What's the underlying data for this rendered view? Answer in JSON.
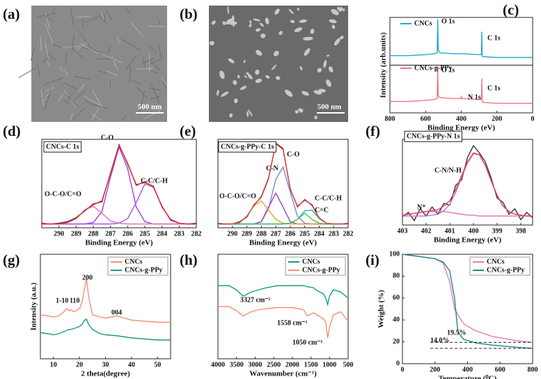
{
  "images": [
    {
      "label": "(a)",
      "scale_bar": "500 nm"
    },
    {
      "label": "(b)",
      "scale_bar": "500 nm"
    }
  ],
  "chart_data": [
    {
      "type": "line",
      "label": "(c)",
      "xlabel": "Binding Energy (eV)",
      "ylabel": "Intensity (arb.units)",
      "x": [
        800,
        700,
        600,
        550,
        535,
        532,
        529,
        520,
        450,
        402,
        400,
        398,
        300,
        290,
        287,
        285,
        283,
        280,
        200,
        100,
        0
      ],
      "series": [
        {
          "name": "CNCs",
          "color": "#22aacc",
          "values": [
            60,
            60,
            61,
            62,
            63,
            98,
            66,
            63,
            62,
            62,
            62,
            62,
            61,
            61,
            62,
            85,
            60,
            59,
            58,
            58,
            58
          ]
        },
        {
          "name": "CNCs-g-PPy",
          "color": "#f07880",
          "values": [
            12,
            12,
            13,
            14,
            15,
            48,
            18,
            16,
            15,
            15,
            18,
            15,
            14,
            14,
            15,
            36,
            12,
            11,
            10,
            10,
            10
          ]
        }
      ],
      "xlim": [
        800,
        0
      ],
      "ylim": [
        0,
        100
      ],
      "xticks": [
        800,
        600,
        400,
        200,
        0
      ],
      "annotations": [
        "O 1s",
        "C 1s",
        "O 1s",
        "N 1s",
        "C 1s"
      ]
    },
    {
      "type": "line",
      "label": "(d)",
      "title": "CNCs-C 1s",
      "xlabel": "Binding Energy (eV)",
      "x": [
        291,
        290.5,
        290,
        289.5,
        289,
        288.5,
        288,
        287.5,
        287,
        286.5,
        286,
        285.5,
        285,
        284.5,
        284,
        283.5,
        283,
        282.5,
        282
      ],
      "series": [
        {
          "color": "#222222",
          "values": [
            6,
            5,
            6,
            8,
            13,
            22,
            31,
            34,
            71,
            108,
            83,
            56,
            59,
            54,
            27,
            11,
            6,
            5,
            6
          ]
        },
        {
          "color": "#a040e0",
          "values": [
            5,
            5,
            5,
            5,
            5,
            5,
            7,
            21,
            66,
            105,
            77,
            27,
            8,
            5,
            5,
            5,
            5,
            5,
            5
          ]
        },
        {
          "color": "#b050e8",
          "values": [
            5,
            5,
            5,
            5,
            5,
            5,
            5,
            5,
            5,
            6,
            12,
            33,
            57,
            53,
            28,
            10,
            6,
            5,
            5
          ]
        },
        {
          "color": "#e070c0",
          "values": [
            5,
            5,
            5,
            7,
            12,
            23,
            28,
            19,
            9,
            6,
            5,
            5,
            5,
            5,
            5,
            5,
            5,
            5,
            5
          ]
        },
        {
          "color": "#e8303a",
          "values": [
            5,
            5,
            5,
            7,
            12,
            23,
            30,
            35,
            70,
            107,
            84,
            55,
            60,
            53,
            28,
            10,
            6,
            5,
            5
          ]
        }
      ],
      "xlim": [
        291,
        282
      ],
      "ylim": [
        0,
        115
      ],
      "xticks": [
        290,
        289,
        288,
        287,
        286,
        285,
        284,
        283,
        282
      ],
      "annotations": [
        "C-O",
        "O-C-O/C=O",
        "C-C/C-H"
      ]
    },
    {
      "type": "line",
      "label": "(e)",
      "title": "CNCs-g-PPy-C 1s",
      "xlabel": "Binding Energy (eV)",
      "x": [
        291,
        290.5,
        290,
        289.5,
        289,
        288.5,
        288,
        287.5,
        287,
        286.5,
        286,
        285.5,
        285,
        284.5,
        284,
        283.5,
        283,
        282.5,
        282
      ],
      "series": [
        {
          "color": "#333333",
          "values": [
            6,
            5,
            5,
            8,
            14,
            30,
            40,
            64,
            110,
            103,
            50,
            28,
            36,
            30,
            12,
            6,
            5,
            5,
            6
          ]
        },
        {
          "color": "#7788cc",
          "values": [
            5,
            5,
            5,
            5,
            5,
            5,
            8,
            25,
            63,
            79,
            46,
            15,
            6,
            5,
            5,
            5,
            5,
            5,
            5
          ]
        },
        {
          "color": "#9a40d0",
          "values": [
            5,
            5,
            5,
            5,
            5,
            5,
            8,
            27,
            45,
            27,
            8,
            5,
            5,
            5,
            5,
            5,
            5,
            5,
            5
          ]
        },
        {
          "color": "#f0a030",
          "values": [
            5,
            5,
            5,
            7,
            15,
            29,
            35,
            23,
            11,
            6,
            5,
            5,
            5,
            5,
            5,
            5,
            5,
            5,
            5
          ]
        },
        {
          "color": "#30b0a0",
          "values": [
            5,
            5,
            5,
            5,
            5,
            5,
            5,
            5,
            5,
            5,
            6,
            11,
            22,
            23,
            12,
            6,
            5,
            5,
            5
          ]
        },
        {
          "color": "#40c060",
          "values": [
            5,
            5,
            5,
            5,
            5,
            5,
            5,
            5,
            5,
            5,
            6,
            11,
            19,
            11,
            6,
            5,
            5,
            5,
            5
          ]
        },
        {
          "color": "#e84040",
          "values": [
            5,
            5,
            5,
            7,
            15,
            29,
            41,
            65,
            109,
            102,
            51,
            27,
            37,
            29,
            13,
            6,
            5,
            5,
            5
          ]
        }
      ],
      "xlim": [
        291,
        282
      ],
      "ylim": [
        0,
        115
      ],
      "xticks": [
        290,
        289,
        288,
        287,
        286,
        285,
        284,
        283,
        282
      ],
      "annotations": [
        "C-O",
        "C-N",
        "O-C-O/C=O",
        "C-C/C-H",
        "C=C"
      ]
    },
    {
      "type": "line",
      "label": "(f)",
      "title": "CNCs-g-PPy-N 1s",
      "xlabel": "Binding Energy (eV)",
      "x": [
        403,
        402.75,
        402.5,
        402.25,
        402,
        401.75,
        401.5,
        401.25,
        401,
        400.75,
        400.5,
        400.25,
        400,
        399.75,
        399.5,
        399.25,
        399,
        398.75,
        398.5,
        398.25,
        398,
        397.75,
        397.5
      ],
      "series": [
        {
          "color": "#333333",
          "values": [
            9,
            14,
            5,
            18,
            10,
            20,
            12,
            24,
            22,
            44,
            50,
            75,
            88,
            80,
            70,
            52,
            30,
            25,
            12,
            18,
            6,
            14,
            8
          ]
        },
        {
          "color": "#e070c0",
          "values": [
            11,
            12,
            13,
            14,
            15,
            15,
            15,
            15,
            14,
            13,
            12,
            11,
            11,
            10,
            10,
            10,
            10,
            10,
            10,
            10,
            10,
            10,
            10
          ]
        },
        {
          "color": "#c070e0",
          "values": [
            10,
            10,
            10,
            10,
            10,
            11,
            12,
            16,
            23,
            36,
            53,
            69,
            79,
            78,
            66,
            49,
            33,
            21,
            15,
            12,
            11,
            10,
            10
          ]
        },
        {
          "color": "#e84050",
          "values": [
            11,
            12,
            13,
            14,
            15,
            16,
            17,
            21,
            27,
            39,
            55,
            70,
            80,
            78,
            66,
            49,
            33,
            21,
            15,
            12,
            11,
            10,
            10
          ]
        }
      ],
      "xlim": [
        403,
        397.5
      ],
      "ylim": [
        0,
        95
      ],
      "xticks": [
        403,
        402,
        401,
        400,
        399,
        398
      ],
      "annotations": [
        "C-N/N-H",
        "N⁺"
      ]
    },
    {
      "type": "line",
      "label": "(g)",
      "xlabel": "2 theta(degree)",
      "ylabel": "Intensity (a.u.)",
      "x": [
        5,
        8,
        10,
        12,
        14,
        15,
        16,
        16.5,
        18,
        20,
        21,
        22,
        22.7,
        23.5,
        25,
        28,
        30,
        34.5,
        40,
        45,
        50,
        55
      ],
      "series": [
        {
          "name": "CNCs",
          "color": "#f4907a",
          "values": [
            42,
            41,
            40,
            41,
            45,
            48,
            46,
            47,
            45,
            48,
            54,
            68,
            77,
            60,
            42,
            40,
            39,
            41,
            37,
            36,
            35,
            35
          ]
        },
        {
          "name": "CNCs-g-PPy",
          "color": "#1a9a88",
          "values": [
            25,
            24,
            23,
            24,
            26,
            27,
            28,
            28,
            29,
            31,
            33,
            37,
            38,
            33,
            28,
            24,
            23,
            22,
            20,
            19,
            18,
            18
          ]
        }
      ],
      "xlim": [
        5,
        55
      ],
      "ylim": [
        0,
        100
      ],
      "xticks": [
        10,
        20,
        30,
        40,
        50
      ],
      "annotations": [
        "1-10",
        "110",
        "200",
        "004"
      ]
    },
    {
      "type": "line",
      "label": "(h)",
      "xlabel": "Wavenumber (cm⁻¹)",
      "x": [
        4000,
        3700,
        3500,
        3327,
        3100,
        2900,
        2700,
        2400,
        2000,
        1700,
        1600,
        1430,
        1370,
        1160,
        1100,
        1050,
        1000,
        900,
        700,
        500
      ],
      "series": [
        {
          "name": "CNCs",
          "color": "#1a9a88",
          "values": [
            70,
            70,
            66,
            60,
            64,
            66,
            68,
            70,
            70,
            70,
            69,
            68,
            66,
            62,
            58,
            52,
            60,
            66,
            64,
            58
          ]
        },
        {
          "name": "CNCs-g-PPy",
          "color": "#f4907a",
          "values": [
            50,
            50,
            46,
            41,
            45,
            47,
            48,
            49,
            49,
            47,
            41,
            44,
            43,
            38,
            35,
            20,
            30,
            42,
            45,
            36
          ]
        }
      ],
      "xlim": [
        4000,
        500
      ],
      "ylim": [
        0,
        100
      ],
      "xticks": [
        4000,
        3500,
        3000,
        2500,
        2000,
        1500,
        1000,
        500
      ],
      "annotations": [
        "3327 cm⁻¹",
        "1558 cm⁻¹",
        "1050 cm⁻¹"
      ]
    },
    {
      "type": "line",
      "label": "(i)",
      "xlabel": "Temperature (⁰C)",
      "ylabel": "Weight (%)",
      "x": [
        0,
        100,
        200,
        250,
        290,
        320,
        340,
        360,
        380,
        450,
        550,
        700,
        800
      ],
      "series": [
        {
          "name": "CNCs",
          "color": "#e87ab8",
          "values": [
            100,
            98,
            96,
            92,
            75,
            50,
            45,
            40,
            36,
            30,
            25,
            21,
            19.5
          ]
        },
        {
          "name": "CNCs-g-PPy",
          "color": "#1a8a80",
          "values": [
            100,
            98,
            96,
            93,
            85,
            60,
            30,
            25,
            22,
            19,
            17,
            15,
            14
          ]
        }
      ],
      "xlim": [
        0,
        800
      ],
      "ylim": [
        0,
        100
      ],
      "xticks": [
        0,
        200,
        400,
        600,
        800
      ],
      "yticks": [
        0,
        20,
        40,
        60,
        80,
        100
      ],
      "annotations": [
        "19.5%",
        "14.0%"
      ]
    }
  ]
}
